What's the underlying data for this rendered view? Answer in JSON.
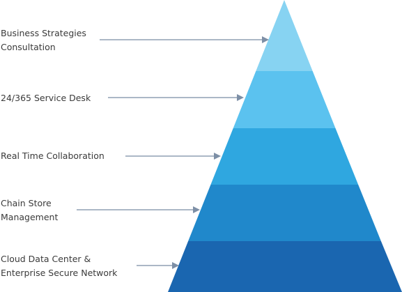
{
  "levels": [
    {
      "lines": [
        "Business Strategies",
        "Consultation"
      ]
    },
    {
      "lines": [
        "24/365 Service Desk"
      ]
    },
    {
      "lines": [
        "Real Time Collaboration"
      ]
    },
    {
      "lines": [
        "Chain Store",
        "Management"
      ]
    },
    {
      "lines": [
        "Cloud Data Center &",
        "Enterprise Secure Network"
      ]
    }
  ]
}
